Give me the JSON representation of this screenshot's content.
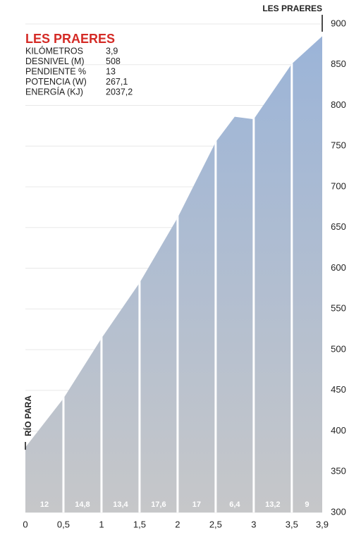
{
  "chart_data": {
    "type": "area",
    "title": "LES PRAERES",
    "stats": [
      [
        "KILÓMETROS",
        "3,9"
      ],
      [
        "DESNIVEL (M)",
        "508"
      ],
      [
        "PENDIENTE %",
        "13"
      ],
      [
        "POTENCIA (W)",
        "267,1"
      ],
      [
        "ENERGÍA (KJ)",
        "2037,2"
      ]
    ],
    "start_label": "RÍO PARA",
    "end_label": "LES PRAERES",
    "x": [
      0,
      0.5,
      1,
      1.5,
      2,
      2.5,
      2.75,
      3,
      3.5,
      3.9
    ],
    "values": [
      380,
      440,
      514,
      582,
      662,
      755,
      786,
      783,
      851,
      885
    ],
    "segment_labels": [
      "12",
      "14,8",
      "13,4",
      "17,6",
      "17",
      "6,4",
      "13,2",
      "9"
    ],
    "xlim": [
      0,
      3.9
    ],
    "xticks": [
      0,
      {
        "value": 0.5,
        "label": "0,5"
      },
      1,
      {
        "value": 1.5,
        "label": "1,5"
      },
      2,
      {
        "value": 2.5,
        "label": "2,5"
      },
      3,
      {
        "value": 3.5,
        "label": "3,5"
      },
      {
        "value": 3.9,
        "label": "3,9"
      }
    ],
    "ylim": [
      300,
      900
    ],
    "yticks": [
      300,
      350,
      400,
      450,
      500,
      550,
      600,
      650,
      700,
      750,
      800,
      850,
      900
    ],
    "grid": true
  }
}
